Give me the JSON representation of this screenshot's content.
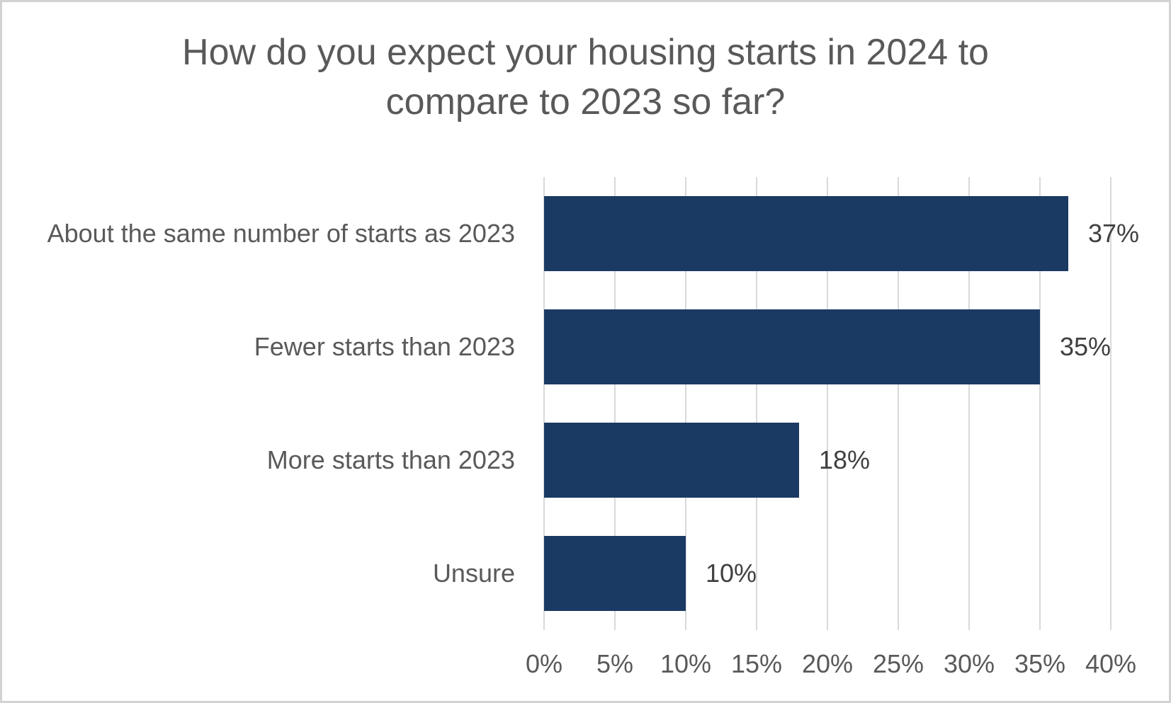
{
  "chart_data": {
    "type": "bar",
    "orientation": "horizontal",
    "title": "How do you expect your housing starts in 2024 to compare to 2023 so far?",
    "title_lines": [
      "How do you expect your housing starts in 2024 to",
      "compare to 2023 so far?"
    ],
    "categories": [
      "About the same number of starts as 2023",
      "Fewer starts than 2023",
      "More starts than 2023",
      "Unsure"
    ],
    "values": [
      37,
      35,
      18,
      10
    ],
    "data_labels": [
      "37%",
      "35%",
      "18%",
      "10%"
    ],
    "x_ticks": [
      "0%",
      "5%",
      "10%",
      "15%",
      "20%",
      "25%",
      "30%",
      "35%",
      "40%"
    ],
    "xlim": [
      0,
      40
    ],
    "xlabel": "",
    "ylabel": "",
    "grid": true,
    "legend_position": "none",
    "bar_color": "#1B3A63",
    "gridline_color": "#D9D9D9",
    "axis_text_color": "#595959",
    "title_color": "#595959",
    "data_label_color": "#404040"
  }
}
